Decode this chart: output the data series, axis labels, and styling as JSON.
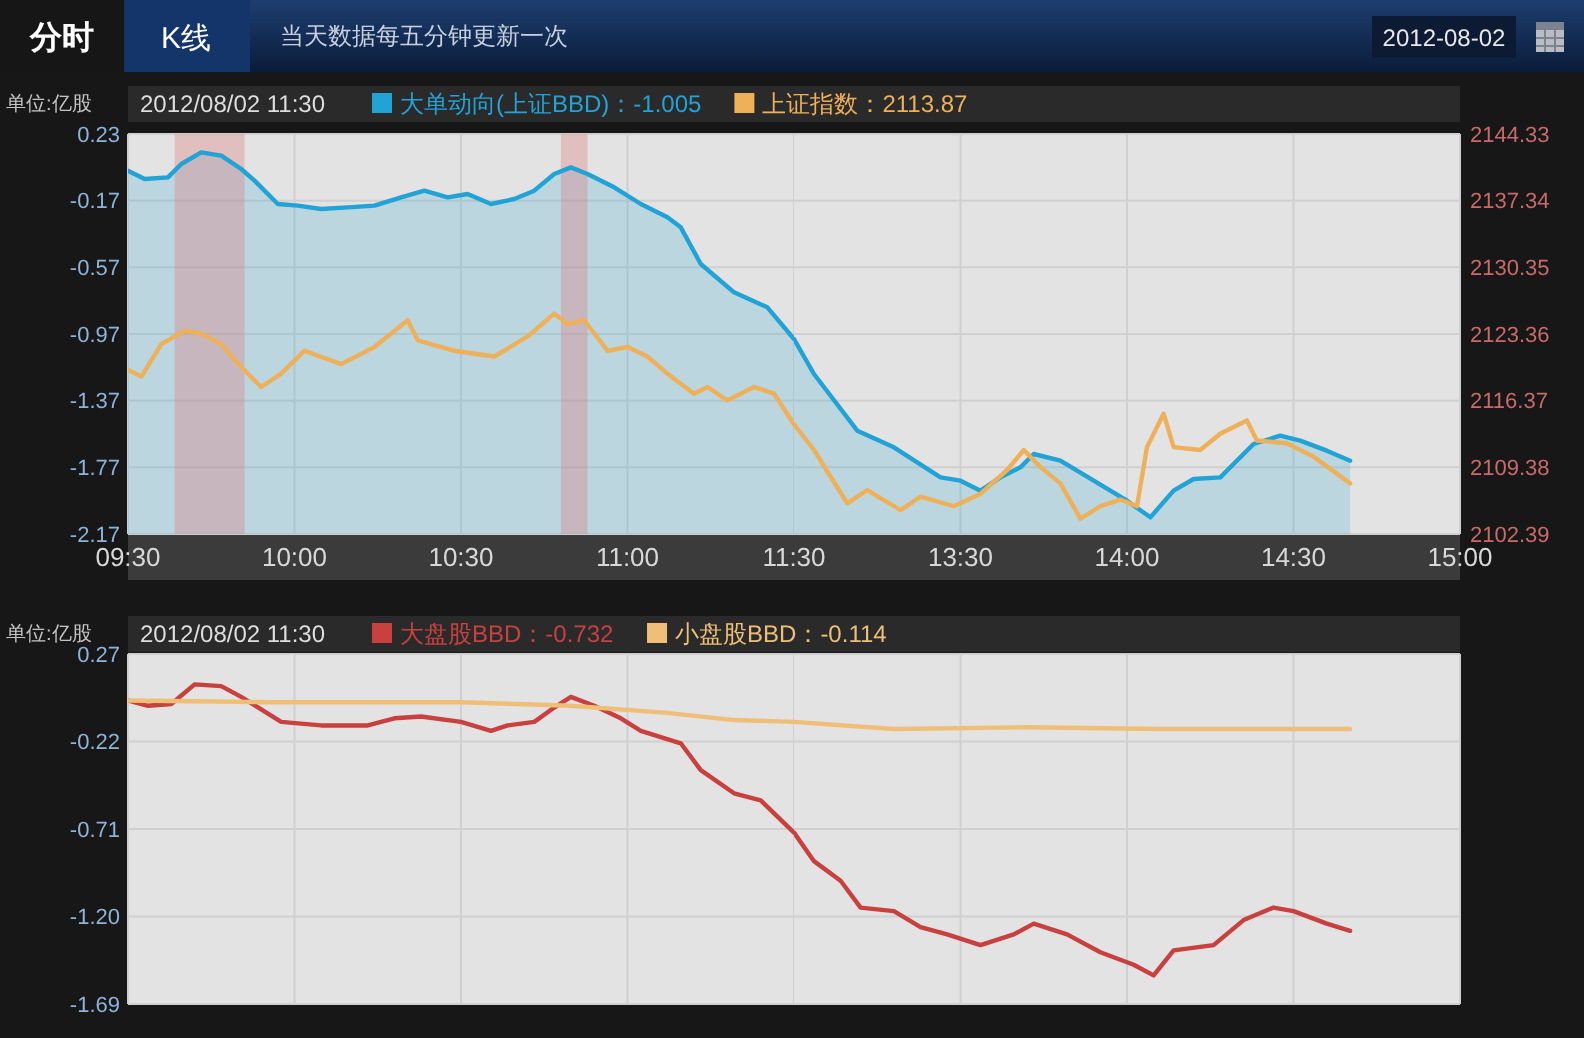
{
  "chart_data": [
    {
      "type": "line",
      "annotations": [
        "分时",
        "K线",
        "当天数据每五分钟更新一次",
        "2012-08-02"
      ],
      "ylabel": "单位:亿股",
      "legend_title": "2012/08/02 11:30",
      "legend": "top",
      "xlim": [
        9.5,
        11.5
      ],
      "xticks": [
        {
          "value": 9.5,
          "label": "09:30"
        },
        {
          "value": 10,
          "label": "10:00"
        },
        {
          "value": 10.5,
          "label": "10:30"
        },
        {
          "value": 11,
          "label": "11:00"
        },
        {
          "value": 11.5,
          "label": "11:30"
        }
      ],
      "ylim": [
        -2.17,
        0.23
      ],
      "yticks": [
        0.23,
        -0.17,
        -0.57,
        -0.97,
        -1.37,
        -1.77,
        -2.17
      ],
      "y2lim": [
        2102.39,
        2144.33
      ],
      "grid": true,
      "bands": [
        {
          "axis": "x",
          "from": 9.64,
          "to": 9.85,
          "color": "#e06c6c"
        },
        {
          "axis": "x",
          "from": 10.8,
          "to": 10.88,
          "color": "#e06c6c"
        }
      ],
      "series": [
        {
          "name": "大单动向(上证BBD)：-1.005",
          "color": "#22a3d6",
          "x": [
            9.5,
            9.55,
            9.62,
            9.66,
            9.72,
            9.78,
            9.84,
            9.88,
            9.95,
            10.01,
            10.08,
            10.16,
            10.24,
            10.32,
            10.39,
            10.46,
            10.52,
            10.59,
            10.66,
            10.72,
            10.78,
            10.83,
            10.88,
            10.96,
            11.04,
            11.12,
            11.16,
            11.22,
            11.32,
            11.42,
            11.5
          ],
          "values": [
            0.01,
            -0.04,
            -0.03,
            0.05,
            0.12,
            0.1,
            0.02,
            -0.05,
            -0.19,
            -0.2,
            -0.22,
            -0.21,
            -0.2,
            -0.15,
            -0.11,
            -0.15,
            -0.13,
            -0.19,
            -0.16,
            -0.11,
            -0.01,
            0.03,
            -0.01,
            -0.09,
            -0.19,
            -0.27,
            -0.33,
            -0.55,
            -0.72,
            -0.81,
            -1.0
          ],
          "upper": [
            0.01,
            -0.04,
            -0.03,
            0.05,
            0.12,
            0.1,
            0.02,
            -0.05,
            -0.19,
            -0.2,
            -0.22,
            -0.21,
            -0.2,
            -0.15,
            -0.11,
            -0.15,
            -0.13,
            -0.19,
            -0.16,
            -0.11,
            -0.01,
            0.03,
            -0.01,
            -0.09,
            -0.19,
            -0.27,
            -0.33,
            -0.55,
            -0.72,
            -0.81,
            -1.0
          ],
          "lower": [
            -2.17,
            -2.17,
            -2.17,
            -2.17,
            -2.17,
            -2.17,
            -2.17,
            -2.17,
            -2.17,
            -2.17,
            -2.17,
            -2.17,
            -2.17,
            -2.17,
            -2.17,
            -2.17,
            -2.17,
            -2.17,
            -2.17,
            -2.17,
            -2.17,
            -2.17,
            -2.17,
            -2.17,
            -2.17,
            -2.17,
            -2.17,
            -2.17,
            -2.17,
            -2.17,
            -2.17
          ]
        },
        {
          "name": "上证指数：2113.87",
          "axis": "y2",
          "color": "#eeb058",
          "x": [
            9.5,
            9.54,
            9.6,
            9.67,
            9.72,
            9.78,
            9.84,
            9.9,
            9.96,
            10.03,
            10.14,
            10.24,
            10.34,
            10.37,
            10.48,
            10.6,
            10.7,
            10.78,
            10.82,
            10.87,
            10.94,
            11.0,
            11.06,
            11.12,
            11.2,
            11.24,
            11.3,
            11.38,
            11.44,
            11.5
          ],
          "values": [
            2119.6,
            2118.9,
            2122.3,
            2123.7,
            2123.4,
            2122.3,
            2119.9,
            2117.8,
            2119.2,
            2121.6,
            2120.2,
            2122.0,
            2124.8,
            2122.7,
            2121.6,
            2121.0,
            2123.1,
            2125.5,
            2124.4,
            2124.8,
            2121.6,
            2122.0,
            2121.0,
            2119.2,
            2117.1,
            2117.8,
            2116.4,
            2117.8,
            2117.1,
            2113.9
          ]
        }
      ]
    },
    {
      "type": "line",
      "xlim": [
        13,
        15
      ],
      "xticks": [
        {
          "value": 13.5,
          "label": "13:30"
        },
        {
          "value": 14,
          "label": "14:00"
        },
        {
          "value": 14.5,
          "label": "14:30"
        },
        {
          "value": 15,
          "label": "15:00"
        }
      ],
      "ylim": [
        -2.17,
        0.23
      ],
      "y2lim": [
        2102.39,
        2144.33
      ],
      "y2ticks": [
        2144.33,
        2137.34,
        2130.35,
        2123.36,
        2116.37,
        2109.38,
        2102.39
      ],
      "grid": true,
      "series": [
        {
          "color": "#22a3d6",
          "x": [
            13.0,
            13.06,
            13.19,
            13.3,
            13.44,
            13.5,
            13.56,
            13.62,
            13.68,
            13.72,
            13.8,
            13.9,
            14.0,
            14.07,
            14.14,
            14.2,
            14.28,
            14.38,
            14.46,
            14.52,
            14.6,
            14.67
          ],
          "values": [
            -1.0,
            -1.21,
            -1.55,
            -1.65,
            -1.83,
            -1.85,
            -1.91,
            -1.83,
            -1.77,
            -1.69,
            -1.73,
            -1.85,
            -1.97,
            -2.07,
            -1.91,
            -1.84,
            -1.83,
            -1.63,
            -1.58,
            -1.61,
            -1.67,
            -1.73
          ],
          "upper": [
            -1.0,
            -1.21,
            -1.55,
            -1.65,
            -1.83,
            -1.85,
            -1.91,
            -1.83,
            -1.77,
            -1.69,
            -1.73,
            -1.85,
            -1.97,
            -2.07,
            -1.91,
            -1.84,
            -1.83,
            -1.63,
            -1.58,
            -1.61,
            -1.67,
            -1.73
          ],
          "lower": [
            -2.17,
            -2.17,
            -2.17,
            -2.17,
            -2.17,
            -2.17,
            -2.17,
            -2.17,
            -2.17,
            -2.17,
            -2.17,
            -2.17,
            -2.17,
            -2.17,
            -2.17,
            -2.17,
            -2.17,
            -2.17,
            -2.17,
            -2.17,
            -2.17,
            -2.17
          ]
        },
        {
          "axis": "y2",
          "color": "#eeb058",
          "x": [
            13.0,
            13.06,
            13.16,
            13.22,
            13.32,
            13.38,
            13.48,
            13.56,
            13.64,
            13.69,
            13.74,
            13.8,
            13.86,
            13.92,
            13.98,
            14.03,
            14.06,
            14.11,
            14.14,
            14.22,
            14.28,
            14.36,
            14.39,
            14.48,
            14.56,
            14.67
          ],
          "values": [
            2113.9,
            2111.2,
            2105.6,
            2107.0,
            2104.9,
            2106.3,
            2105.3,
            2106.6,
            2109.1,
            2111.2,
            2109.4,
            2107.7,
            2104.0,
            2105.3,
            2106.0,
            2105.3,
            2111.5,
            2115.0,
            2111.5,
            2111.2,
            2112.9,
            2114.3,
            2112.2,
            2111.9,
            2110.5,
            2107.7
          ]
        }
      ]
    },
    {
      "type": "line",
      "ylabel": "单位:亿股",
      "legend_title": "2012/08/02 11:30",
      "legend": "top",
      "xlim": [
        9.5,
        11.5
      ],
      "xticks": [
        {
          "value": 9.5,
          "label": null
        },
        {
          "value": 10,
          "label": null
        },
        {
          "value": 10.5,
          "label": null
        },
        {
          "value": 11,
          "label": null
        },
        {
          "value": 11.5,
          "label": null
        }
      ],
      "ylim": [
        -1.69,
        0.27
      ],
      "yticks": [
        0.27,
        -0.22,
        -0.71,
        {
          "value": -1.2,
          "label": "-1.20"
        },
        -1.69
      ],
      "grid": true,
      "tick_labels": "y",
      "series": [
        {
          "name": "大盘股BBD：-0.732",
          "color": "#c8413f",
          "x": [
            9.5,
            9.56,
            9.63,
            9.7,
            9.78,
            9.84,
            9.96,
            10.08,
            10.22,
            10.3,
            10.38,
            10.5,
            10.59,
            10.64,
            10.72,
            10.78,
            10.83,
            10.9,
            10.98,
            11.04,
            11.16,
            11.22,
            11.32,
            11.4,
            11.5
          ],
          "values": [
            0.01,
            -0.02,
            -0.01,
            0.1,
            0.09,
            0.03,
            -0.11,
            -0.13,
            -0.13,
            -0.09,
            -0.08,
            -0.11,
            -0.16,
            -0.13,
            -0.11,
            -0.03,
            0.03,
            -0.02,
            -0.09,
            -0.16,
            -0.23,
            -0.38,
            -0.51,
            -0.55,
            -0.73
          ]
        },
        {
          "name": "小盘股BBD：-0.114",
          "color": "#efbf78",
          "x": [
            9.5,
            9.92,
            10.5,
            10.83,
            11.12,
            11.32,
            11.5
          ],
          "values": [
            0.01,
            0.0,
            0.0,
            -0.02,
            -0.06,
            -0.1,
            -0.11
          ]
        }
      ]
    },
    {
      "type": "line",
      "xlim": [
        13,
        15
      ],
      "xticks": [
        {
          "value": 13.5,
          "label": null
        },
        {
          "value": 14,
          "label": null
        },
        {
          "value": 14.5,
          "label": null
        },
        {
          "value": 15,
          "label": null
        }
      ],
      "ylim": [
        -1.69,
        0.27
      ],
      "yticks": [
        {
          "value": 0.27,
          "label": null
        },
        {
          "value": -0.22,
          "label": null
        },
        {
          "value": -0.71,
          "label": null
        },
        {
          "value": -1.2,
          "label": null
        },
        {
          "value": -1.69,
          "label": null
        }
      ],
      "grid": true,
      "tick_labels": false,
      "series": [
        {
          "color": "#c8413f",
          "x": [
            13.0,
            13.06,
            13.14,
            13.2,
            13.3,
            13.38,
            13.46,
            13.56,
            13.66,
            13.72,
            13.82,
            13.92,
            14.02,
            14.08,
            14.14,
            14.26,
            14.35,
            14.44,
            14.5,
            14.6,
            14.67
          ],
          "values": [
            -0.73,
            -0.89,
            -1.0,
            -1.15,
            -1.17,
            -1.26,
            -1.3,
            -1.36,
            -1.3,
            -1.24,
            -1.3,
            -1.4,
            -1.47,
            -1.53,
            -1.39,
            -1.36,
            -1.22,
            -1.15,
            -1.17,
            -1.24,
            -1.28
          ]
        },
        {
          "color": "#efbf78",
          "x": [
            13.0,
            13.3,
            13.7,
            14.1,
            14.67
          ],
          "values": [
            -0.11,
            -0.15,
            -0.14,
            -0.15,
            -0.15
          ]
        }
      ]
    }
  ]
}
